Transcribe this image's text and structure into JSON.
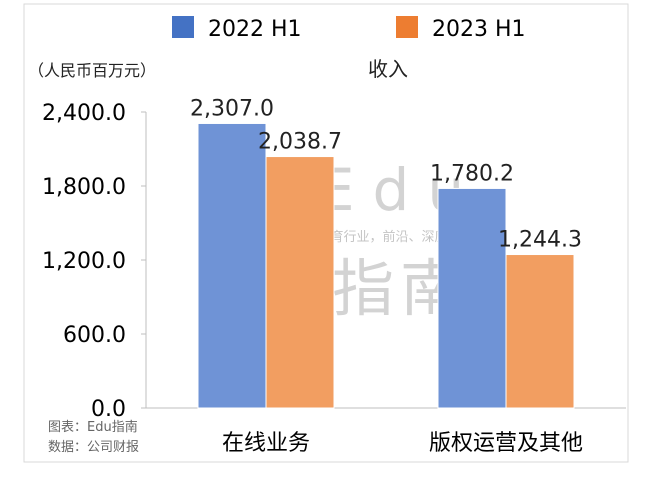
{
  "chart_data": {
    "type": "bar",
    "title": "收入",
    "unit_label": "（人民币百万元）",
    "categories": [
      "在线业务",
      "版权运营及其他"
    ],
    "series": [
      {
        "name": "2022 H1",
        "color": "#6f93d6",
        "legend_color": "#4472c4",
        "values": [
          2307.0,
          1780.2
        ],
        "labels": [
          "2,307.0",
          "1,780.2"
        ]
      },
      {
        "name": "2023 H1",
        "color": "#f29e61",
        "legend_color": "#ed7d31",
        "values": [
          2038.7,
          1244.3
        ],
        "labels": [
          "2,038.7",
          "1,244.3"
        ]
      }
    ],
    "y_ticks": [
      "0.0",
      "600.0",
      "1,200.0",
      "1,800.0",
      "2,400.0"
    ],
    "y_tick_values": [
      0,
      600,
      1200,
      1800,
      2400
    ],
    "ylim": [
      0,
      2400
    ],
    "grid": false,
    "legend_position": "top"
  },
  "source": {
    "line1": "图表：Edu指南",
    "line2": "数据：公司财报"
  },
  "watermark": {
    "logo_line1": "Edu",
    "logo_line2": "指南",
    "slogan": "教育行业，前沿、深度、独家"
  }
}
